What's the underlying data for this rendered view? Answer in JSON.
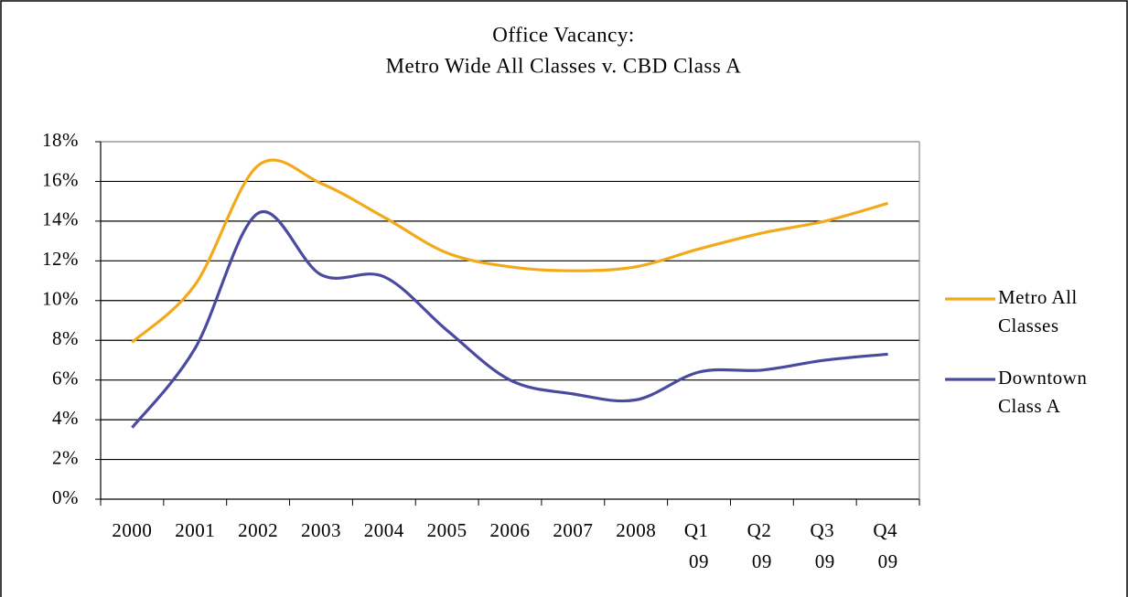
{
  "chart_data": {
    "type": "line",
    "title": [
      "Office Vacancy:",
      "Metro Wide All Classes v. CBD Class A"
    ],
    "categories": [
      "2000",
      "2001",
      "2002",
      "2003",
      "2004",
      "2005",
      "2006",
      "2007",
      "2008",
      "Q1 09",
      "Q2 09",
      "Q3 09",
      "Q4 09"
    ],
    "series": [
      {
        "name": "Metro All Classes",
        "color": "#f2a91a",
        "values": [
          7.9,
          10.8,
          16.8,
          15.9,
          14.2,
          12.4,
          11.7,
          11.5,
          11.7,
          12.6,
          13.4,
          14.0,
          14.9
        ]
      },
      {
        "name": "Downtown Class A",
        "color": "#4a4aa0",
        "values": [
          3.6,
          7.6,
          14.4,
          11.3,
          11.2,
          8.5,
          6.0,
          5.3,
          5.0,
          6.4,
          6.5,
          7.0,
          7.3
        ]
      }
    ],
    "ylim": [
      0,
      18
    ],
    "yticks": [
      {
        "value": 0,
        "label": "0%"
      },
      {
        "value": 2,
        "label": "2%"
      },
      {
        "value": 4,
        "label": "4%"
      },
      {
        "value": 6,
        "label": "6%"
      },
      {
        "value": 8,
        "label": "8%"
      },
      {
        "value": 10,
        "label": "10%"
      },
      {
        "value": 12,
        "label": "12%"
      },
      {
        "value": 14,
        "label": "14%"
      },
      {
        "value": 16,
        "label": "16%"
      },
      {
        "value": 18,
        "label": "18%"
      }
    ],
    "grid": true,
    "legend": "right"
  }
}
